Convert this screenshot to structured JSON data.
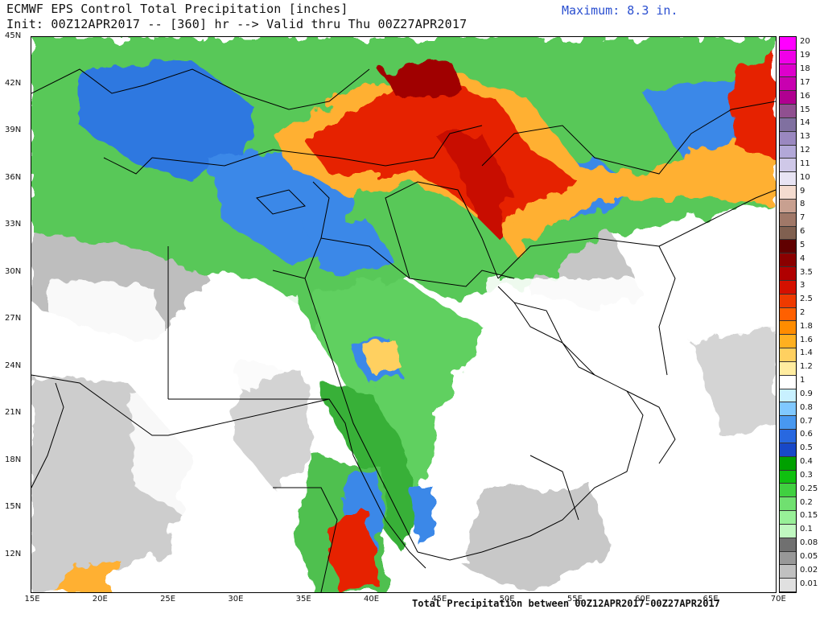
{
  "header": {
    "title": "ECMWF EPS Control Total Precipitation [inches]",
    "init_line": "Init: 00Z12APR2017 -- [360] hr --> Valid thru Thu 00Z27APR2017",
    "maximum": "Maximum: 8.3 in."
  },
  "axes": {
    "lat_labels": [
      "45N",
      "42N",
      "39N",
      "36N",
      "33N",
      "30N",
      "27N",
      "24N",
      "21N",
      "18N",
      "15N",
      "12N"
    ],
    "lon_labels": [
      "15E",
      "20E",
      "25E",
      "30E",
      "35E",
      "40E",
      "45E",
      "50E",
      "55E",
      "60E",
      "65E",
      "70E"
    ]
  },
  "legend": {
    "levels": [
      "20",
      "19",
      "18",
      "17",
      "16",
      "15",
      "14",
      "13",
      "12",
      "11",
      "10",
      "9",
      "8",
      "7",
      "6",
      "5",
      "4",
      "3.5",
      "3",
      "2.5",
      "2",
      "1.8",
      "1.6",
      "1.4",
      "1.2",
      "1",
      "0.9",
      "0.8",
      "0.7",
      "0.6",
      "0.5",
      "0.4",
      "0.3",
      "0.25",
      "0.2",
      "0.15",
      "0.1",
      "0.08",
      "0.05",
      "0.02",
      "0.01"
    ],
    "colors": [
      "#ff00ff",
      "#f000e8",
      "#dd00cc",
      "#c800b0",
      "#b00090",
      "#905090",
      "#8070a0",
      "#9a88c0",
      "#b2a8d8",
      "#cfc8e8",
      "#e8e4f4",
      "#f4dcd0",
      "#c8a090",
      "#a07868",
      "#806050",
      "#600000",
      "#8a0000",
      "#b00000",
      "#d41000",
      "#ee3a00",
      "#ff6000",
      "#ff8c00",
      "#ffb020",
      "#ffd060",
      "#ffeca0",
      "#ffffff",
      "#c8f0ff",
      "#80c8ff",
      "#4898f0",
      "#2868e0",
      "#1848c8",
      "#00a000",
      "#10c010",
      "#40d040",
      "#70e070",
      "#98f098",
      "#c0f8c0",
      "#707070",
      "#989898",
      "#c0c0c0",
      "#e0e0e0"
    ]
  },
  "footer": "Total Precipitation between 00Z12APR2017-00Z27APR2017"
}
